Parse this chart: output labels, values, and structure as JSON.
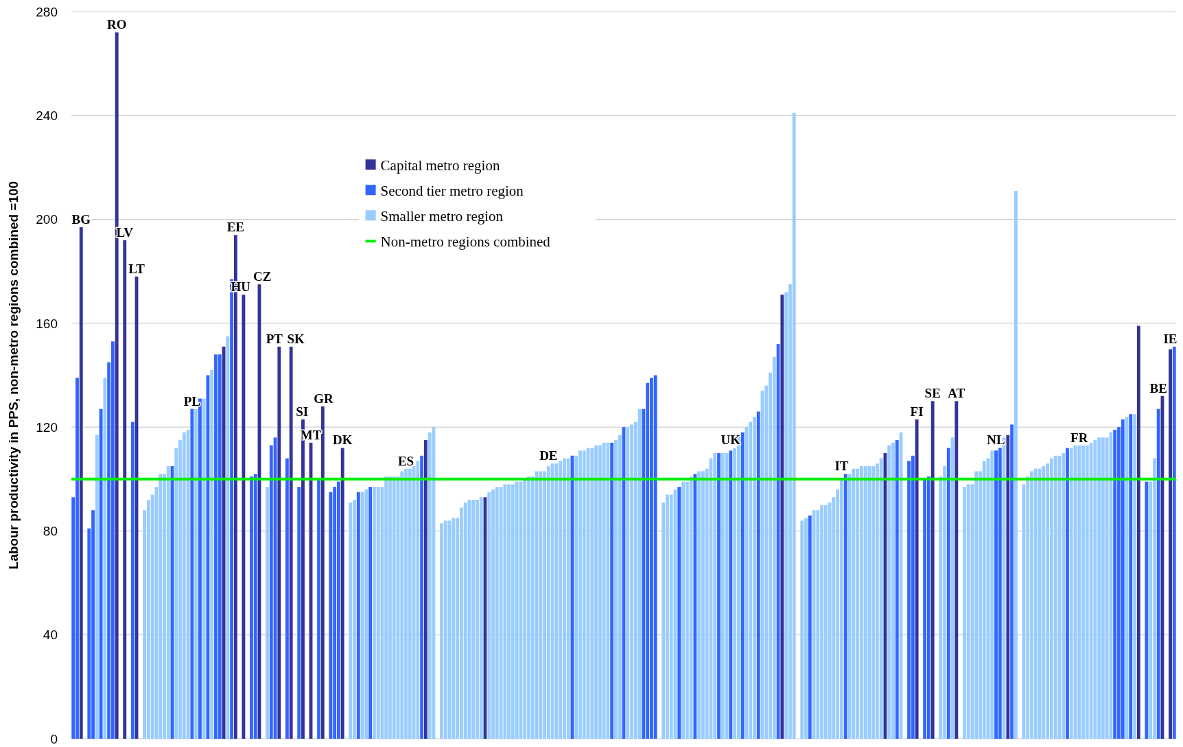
{
  "chart_data": {
    "type": "bar",
    "ylabel": "Labour productivity in PPS, non-metro regions combined =100",
    "ylim": [
      0,
      280
    ],
    "yticks": [
      0,
      40,
      80,
      120,
      160,
      200,
      240,
      280
    ],
    "grid": "y",
    "legend": "top left",
    "tick_labels": "y",
    "categories": [
      null,
      null,
      null,
      null,
      null,
      null,
      null,
      null,
      null,
      null,
      null,
      null,
      null,
      null,
      null,
      null,
      null,
      null,
      null,
      null,
      null,
      null,
      null,
      null,
      null,
      null,
      null,
      null,
      null,
      null,
      null,
      null,
      null,
      null,
      null,
      null,
      null,
      null,
      null,
      null,
      null,
      null,
      null,
      null,
      null,
      null,
      null,
      null,
      null,
      null,
      null,
      null,
      null,
      null,
      null,
      null,
      null,
      null,
      null,
      null,
      null,
      null,
      null,
      null,
      null,
      null,
      null,
      null,
      null,
      null,
      null,
      null,
      null,
      null,
      null,
      null,
      null,
      null,
      null,
      null,
      null,
      null,
      null,
      null,
      null,
      null,
      null,
      null,
      null,
      null,
      null,
      null,
      null,
      null,
      null,
      null,
      null,
      null,
      null,
      null,
      null,
      null,
      null,
      null,
      null,
      null,
      null,
      null,
      null,
      null,
      null,
      null,
      null,
      null,
      null,
      null,
      null,
      null,
      null,
      null,
      null,
      null,
      null,
      null,
      null,
      null,
      null,
      null,
      null,
      null,
      null,
      null,
      null,
      null,
      null,
      null,
      null,
      null,
      null,
      null,
      null,
      null,
      null,
      null,
      null,
      null,
      null,
      null,
      null,
      null,
      null,
      null,
      null,
      null,
      null,
      null,
      null,
      null,
      null,
      null,
      null,
      null,
      null,
      null,
      null,
      null,
      null,
      null,
      null,
      null,
      null,
      null,
      null,
      null,
      null,
      null,
      null,
      null,
      null,
      null,
      null,
      null,
      null,
      null,
      null,
      null,
      null,
      null,
      null,
      null,
      null,
      null,
      null,
      null,
      null,
      null,
      null,
      null,
      null,
      null,
      null,
      null,
      null,
      null,
      null,
      null,
      null,
      null,
      null,
      null,
      null,
      null,
      null,
      null,
      null,
      null,
      null,
      null,
      null,
      null,
      null,
      null,
      null,
      null,
      null,
      null,
      null,
      null,
      null,
      null,
      null,
      null,
      null,
      null,
      null,
      null,
      null,
      null,
      null,
      null,
      null,
      null,
      null,
      null,
      null,
      null,
      null,
      null,
      null,
      null,
      null,
      null,
      null,
      null,
      null,
      null,
      null,
      null,
      null,
      null,
      null,
      null,
      null,
      null,
      null,
      null,
      null,
      null,
      null,
      null,
      null,
      null,
      null,
      null,
      null,
      null,
      null,
      null,
      null
    ],
    "series": [
      {
        "name": "Capital metro region",
        "color": "#333399",
        "values": [
          null,
          null,
          197,
          null,
          null,
          null,
          null,
          null,
          null,
          null,
          null,
          272,
          null,
          192,
          null,
          null,
          178,
          null,
          null,
          null,
          null,
          null,
          null,
          null,
          null,
          null,
          null,
          null,
          null,
          null,
          null,
          null,
          null,
          null,
          null,
          null,
          null,
          null,
          151,
          null,
          null,
          194,
          null,
          171,
          null,
          null,
          null,
          175,
          null,
          null,
          null,
          null,
          151,
          null,
          null,
          151,
          null,
          null,
          123,
          null,
          114,
          null,
          null,
          128,
          null,
          null,
          null,
          null,
          112,
          null,
          null,
          null,
          null,
          null,
          null,
          null,
          null,
          null,
          null,
          null,
          null,
          null,
          null,
          null,
          null,
          null,
          null,
          null,
          null,
          115,
          null,
          null,
          null,
          null,
          null,
          null,
          null,
          null,
          null,
          null,
          null,
          null,
          null,
          null,
          93,
          null,
          null,
          null,
          null,
          null,
          null,
          null,
          null,
          null,
          null,
          null,
          null,
          null,
          null,
          null,
          null,
          null,
          null,
          null,
          null,
          null,
          null,
          null,
          null,
          null,
          null,
          null,
          null,
          null,
          null,
          null,
          null,
          null,
          null,
          null,
          null,
          null,
          null,
          null,
          null,
          null,
          null,
          null,
          null,
          null,
          null,
          null,
          null,
          null,
          null,
          null,
          null,
          null,
          null,
          null,
          null,
          null,
          null,
          null,
          null,
          null,
          null,
          null,
          null,
          null,
          null,
          null,
          null,
          null,
          null,
          null,
          null,
          null,
          null,
          171,
          null,
          null,
          null,
          null,
          null,
          null,
          null,
          null,
          null,
          null,
          null,
          null,
          null,
          null,
          null,
          null,
          null,
          null,
          null,
          null,
          null,
          null,
          null,
          null,
          null,
          110,
          null,
          null,
          null,
          null,
          null,
          null,
          null,
          123,
          null,
          null,
          null,
          130,
          null,
          null,
          null,
          null,
          null,
          130,
          null,
          null,
          null,
          null,
          null,
          null,
          null,
          null,
          null,
          null,
          null,
          null,
          117,
          null,
          null,
          null,
          null,
          null,
          null,
          null,
          null,
          null,
          null,
          null,
          null,
          null,
          null,
          null,
          null,
          null,
          null,
          null,
          null,
          null,
          null,
          null,
          null,
          null,
          null,
          null,
          null,
          null,
          null,
          null,
          null,
          159,
          null,
          null,
          null,
          null,
          null,
          132,
          null,
          150,
          null
        ],
        "value_labels": [
          null,
          null,
          "BG",
          null,
          null,
          null,
          null,
          null,
          null,
          null,
          null,
          "RO",
          null,
          "LV",
          null,
          null,
          "LT",
          null,
          null,
          null,
          null,
          null,
          null,
          null,
          null,
          null,
          null,
          null,
          null,
          null,
          null,
          null,
          null,
          null,
          null,
          null,
          null,
          null,
          null,
          null,
          null,
          "EE",
          null,
          "HU",
          null,
          null,
          null,
          "CZ",
          null,
          null,
          null,
          null,
          "PT",
          null,
          null,
          "SK",
          null,
          null,
          "SI",
          null,
          "MT",
          null,
          null,
          "GR",
          null,
          null,
          null,
          null,
          "DK",
          null,
          null,
          null,
          null,
          null,
          null,
          null,
          null,
          null,
          null,
          null,
          null,
          null,
          null,
          null,
          null,
          null,
          null,
          null,
          null,
          null,
          null,
          null,
          null,
          null,
          null,
          null,
          null,
          null,
          null,
          null,
          null,
          null,
          null,
          null,
          null,
          null,
          null,
          null,
          null,
          null,
          null,
          null,
          null,
          null,
          null,
          null,
          null,
          null,
          null,
          null,
          null,
          null,
          null,
          null,
          null,
          null,
          null,
          null,
          null,
          null,
          null,
          null,
          null,
          null,
          null,
          null,
          null,
          null,
          null,
          null,
          null,
          null,
          null,
          null,
          null,
          null,
          null,
          null,
          null,
          null,
          null,
          null,
          null,
          null,
          null,
          null,
          null,
          null,
          null,
          null,
          null,
          null,
          null,
          null,
          null,
          null,
          null,
          null,
          null,
          null,
          null,
          null,
          null,
          null,
          null,
          null,
          null,
          null,
          null,
          null,
          null,
          null,
          null,
          null,
          null,
          null,
          null,
          null,
          null,
          null,
          null,
          null,
          null,
          null,
          null,
          null,
          null,
          null,
          null,
          null,
          null,
          null,
          null,
          null,
          null,
          null,
          null,
          null,
          null,
          null,
          null,
          null,
          null,
          "FI",
          null,
          null,
          null,
          "SE",
          null,
          null,
          null,
          null,
          null,
          "AT",
          null,
          null,
          null,
          null,
          null,
          null,
          null,
          null,
          null,
          null,
          null,
          null,
          null,
          null,
          null,
          null,
          null,
          null,
          null,
          null,
          null,
          null,
          null,
          null,
          null,
          null,
          null,
          null,
          null,
          null,
          null,
          null,
          null,
          null,
          null,
          null,
          null,
          null,
          null,
          null,
          null,
          null,
          null,
          null,
          null,
          null,
          null,
          null,
          null,
          null,
          null,
          null,
          null,
          "IE",
          null
        ]
      },
      {
        "name": "Second tier metro region",
        "color": "#3366ff",
        "values": [
          93,
          139,
          null,
          null,
          81,
          88,
          null,
          127,
          null,
          145,
          153,
          null,
          null,
          null,
          null,
          122,
          null,
          null,
          null,
          null,
          null,
          null,
          null,
          null,
          null,
          105,
          null,
          null,
          null,
          null,
          127,
          null,
          131,
          null,
          140,
          null,
          148,
          148,
          null,
          null,
          177,
          null,
          null,
          null,
          null,
          101,
          102,
          null,
          null,
          null,
          113,
          116,
          null,
          null,
          108,
          null,
          null,
          97,
          null,
          null,
          null,
          null,
          100,
          null,
          null,
          95,
          97,
          99,
          null,
          null,
          null,
          null,
          95,
          null,
          null,
          97,
          null,
          null,
          null,
          null,
          null,
          null,
          null,
          null,
          null,
          null,
          null,
          null,
          109,
          null,
          null,
          null,
          null,
          null,
          null,
          null,
          null,
          null,
          null,
          null,
          null,
          null,
          null,
          null,
          null,
          null,
          null,
          null,
          null,
          null,
          null,
          null,
          null,
          null,
          null,
          null,
          null,
          null,
          null,
          null,
          null,
          null,
          null,
          null,
          null,
          null,
          109,
          null,
          null,
          null,
          null,
          null,
          null,
          null,
          null,
          null,
          114,
          null,
          null,
          120,
          null,
          null,
          null,
          null,
          127,
          137,
          139,
          140,
          null,
          null,
          null,
          null,
          null,
          97,
          null,
          null,
          null,
          102,
          null,
          null,
          null,
          null,
          null,
          110,
          null,
          null,
          111,
          null,
          null,
          118,
          null,
          null,
          null,
          126,
          null,
          null,
          null,
          null,
          152,
          null,
          null,
          null,
          null,
          null,
          null,
          null,
          86,
          null,
          null,
          null,
          null,
          null,
          null,
          null,
          null,
          102,
          null,
          null,
          null,
          null,
          null,
          null,
          null,
          null,
          null,
          null,
          null,
          null,
          115,
          null,
          null,
          107,
          109,
          null,
          null,
          100,
          101,
          null,
          null,
          null,
          null,
          112,
          null,
          null,
          null,
          null,
          null,
          null,
          null,
          null,
          null,
          null,
          null,
          111,
          112,
          null,
          null,
          121,
          null,
          null,
          null,
          null,
          null,
          null,
          null,
          null,
          null,
          null,
          null,
          null,
          null,
          112,
          null,
          null,
          null,
          null,
          null,
          null,
          null,
          null,
          null,
          null,
          null,
          119,
          120,
          123,
          null,
          125,
          null,
          null,
          null,
          99,
          null,
          null,
          127,
          null,
          null,
          null,
          151
        ],
        "value_labels": [
          null,
          null,
          null,
          null,
          null,
          null,
          null,
          null,
          null,
          null,
          null,
          null,
          null,
          null,
          null,
          null,
          null,
          null,
          null,
          null,
          null,
          null,
          null,
          null,
          null,
          null,
          null,
          null,
          null,
          null,
          "PL",
          null,
          null,
          null,
          null,
          null,
          null,
          null,
          null,
          null,
          null,
          null,
          null,
          null,
          null,
          null,
          null,
          null,
          null,
          null,
          null,
          null,
          null,
          null,
          null,
          null,
          null,
          null,
          null,
          null,
          null,
          null,
          null,
          null,
          null,
          null,
          null,
          null,
          null,
          null,
          null,
          null,
          null,
          null,
          null,
          null,
          null,
          null,
          null,
          null,
          null,
          null,
          null,
          null,
          null,
          null,
          null,
          null,
          null,
          null,
          null,
          null,
          null,
          null,
          null,
          null,
          null,
          null,
          null,
          null,
          null,
          null,
          null,
          null,
          null,
          null,
          null,
          null,
          null,
          null,
          null,
          null,
          null,
          null,
          null,
          null,
          null,
          null,
          null,
          null,
          null,
          null,
          null,
          null,
          null,
          null,
          null,
          null,
          null,
          null,
          null,
          null,
          null,
          null,
          null,
          null,
          null,
          null,
          null,
          null,
          null,
          null,
          null,
          null,
          null,
          null,
          null,
          null,
          null,
          null,
          null,
          null,
          null,
          null,
          null,
          null,
          null,
          null,
          null,
          null,
          null,
          null,
          null,
          null,
          null,
          null,
          "UK",
          null,
          null,
          null,
          null,
          null,
          null,
          null,
          null,
          null,
          null,
          null,
          null,
          null,
          null,
          null,
          null,
          null,
          null,
          null,
          null,
          null,
          null,
          null,
          null,
          null,
          null,
          null,
          null,
          null,
          null,
          null,
          null,
          null,
          null,
          null,
          null,
          null,
          null,
          null,
          null,
          null,
          null,
          null,
          null,
          null,
          null,
          null,
          null,
          null,
          null,
          null,
          null,
          null,
          null,
          null,
          null,
          null,
          null,
          null,
          null,
          null,
          null,
          null,
          null,
          null,
          null,
          "NL",
          null,
          null,
          null,
          null,
          null,
          null,
          null,
          null,
          null,
          null,
          null,
          null,
          null,
          null,
          null,
          null,
          null,
          null,
          null,
          null,
          null,
          null,
          null,
          null,
          null,
          null,
          null,
          null,
          null,
          null,
          null,
          null,
          null,
          null,
          null,
          null,
          null,
          null,
          null,
          null,
          "BE",
          null,
          null,
          null,
          null
        ]
      },
      {
        "name": "Smaller metro region",
        "color": "#99ccff",
        "values": [
          null,
          null,
          null,
          null,
          null,
          null,
          117,
          null,
          139,
          null,
          null,
          null,
          null,
          null,
          null,
          null,
          null,
          null,
          88,
          92,
          94,
          97,
          102,
          102,
          105,
          null,
          112,
          115,
          118,
          119,
          null,
          127,
          null,
          131,
          null,
          142,
          null,
          null,
          null,
          155,
          null,
          null,
          null,
          null,
          null,
          null,
          null,
          null,
          null,
          97,
          null,
          null,
          null,
          null,
          null,
          null,
          null,
          null,
          null,
          null,
          null,
          null,
          null,
          null,
          null,
          null,
          null,
          null,
          null,
          null,
          91,
          92,
          null,
          95,
          96,
          null,
          97,
          97,
          97,
          101,
          101,
          101,
          101,
          103,
          104,
          104,
          105,
          107,
          null,
          null,
          118,
          120,
          null,
          83,
          84,
          84,
          85,
          85,
          89,
          91,
          92,
          92,
          92,
          93,
          null,
          95,
          96,
          97,
          97,
          98,
          98,
          98,
          99,
          99,
          100,
          101,
          101,
          103,
          103,
          103,
          105,
          106,
          106,
          107,
          108,
          108,
          null,
          109,
          111,
          111,
          112,
          112,
          113,
          113,
          114,
          114,
          null,
          115,
          117,
          null,
          120,
          121,
          122,
          127,
          null,
          null,
          null,
          null,
          null,
          91,
          94,
          94,
          96,
          null,
          99,
          99,
          101,
          null,
          103,
          103,
          104,
          108,
          110,
          null,
          110,
          110,
          null,
          112,
          117,
          null,
          120,
          122,
          124,
          null,
          134,
          136,
          141,
          147,
          null,
          null,
          172,
          175,
          241,
          null,
          84,
          85,
          null,
          88,
          88,
          90,
          90,
          91,
          93,
          96,
          100,
          null,
          102,
          104,
          104,
          105,
          105,
          105,
          105,
          106,
          108,
          null,
          113,
          114,
          null,
          118,
          null,
          null,
          null,
          null,
          null,
          null,
          null,
          null,
          null,
          101,
          105,
          null,
          116,
          null,
          null,
          97,
          98,
          98,
          103,
          103,
          107,
          108,
          111,
          null,
          null,
          116,
          null,
          null,
          211,
          null,
          98,
          101,
          103,
          104,
          104,
          105,
          106,
          108,
          109,
          109,
          110,
          null,
          112,
          113,
          113,
          113,
          113,
          114,
          115,
          116,
          116,
          116,
          118,
          null,
          null,
          null,
          124,
          null,
          125,
          null,
          null,
          null,
          99,
          108,
          null,
          null,
          null,
          null,
          null
        ],
        "value_labels": [
          null,
          null,
          null,
          null,
          null,
          null,
          null,
          null,
          null,
          null,
          null,
          null,
          null,
          null,
          null,
          null,
          null,
          null,
          null,
          null,
          null,
          null,
          null,
          null,
          null,
          null,
          null,
          null,
          null,
          null,
          null,
          null,
          null,
          null,
          null,
          null,
          null,
          null,
          null,
          null,
          null,
          null,
          null,
          null,
          null,
          null,
          null,
          null,
          null,
          null,
          null,
          null,
          null,
          null,
          null,
          null,
          null,
          null,
          null,
          null,
          null,
          null,
          null,
          null,
          null,
          null,
          null,
          null,
          null,
          null,
          null,
          null,
          null,
          null,
          null,
          null,
          null,
          null,
          null,
          null,
          null,
          null,
          null,
          null,
          "ES",
          null,
          null,
          null,
          null,
          null,
          null,
          null,
          null,
          null,
          null,
          null,
          null,
          null,
          null,
          null,
          null,
          null,
          null,
          null,
          null,
          null,
          null,
          null,
          null,
          null,
          null,
          null,
          null,
          null,
          null,
          null,
          null,
          null,
          null,
          null,
          "DE",
          null,
          null,
          null,
          null,
          null,
          null,
          null,
          null,
          null,
          null,
          null,
          null,
          null,
          null,
          null,
          null,
          null,
          null,
          null,
          null,
          null,
          null,
          null,
          null,
          null,
          null,
          null,
          null,
          null,
          null,
          null,
          null,
          null,
          null,
          null,
          null,
          null,
          null,
          null,
          null,
          null,
          null,
          null,
          null,
          null,
          null,
          null,
          null,
          null,
          null,
          null,
          null,
          null,
          null,
          null,
          null,
          null,
          null,
          null,
          null,
          null,
          null,
          null,
          null,
          null,
          null,
          null,
          null,
          null,
          null,
          null,
          null,
          null,
          "IT",
          null,
          null,
          null,
          null,
          null,
          null,
          null,
          null,
          null,
          null,
          null,
          null,
          null,
          null,
          null,
          null,
          null,
          null,
          null,
          null,
          null,
          null,
          null,
          null,
          null,
          null,
          null,
          null,
          null,
          null,
          null,
          null,
          null,
          null,
          null,
          null,
          null,
          null,
          null,
          null,
          null,
          null,
          null,
          null,
          null,
          null,
          null,
          null,
          null,
          null,
          null,
          null,
          null,
          null,
          null,
          null,
          null,
          null,
          null,
          "FR",
          null,
          null,
          null,
          null,
          null,
          null,
          null,
          null,
          null,
          null,
          null,
          null,
          null,
          null,
          null,
          null,
          null,
          null,
          null,
          null,
          null,
          null,
          null,
          null
        ]
      }
    ],
    "ref_lines": [
      {
        "axis": "y",
        "value": 100,
        "label": "Non-metro regions combined",
        "color": "#00ee00"
      }
    ]
  }
}
